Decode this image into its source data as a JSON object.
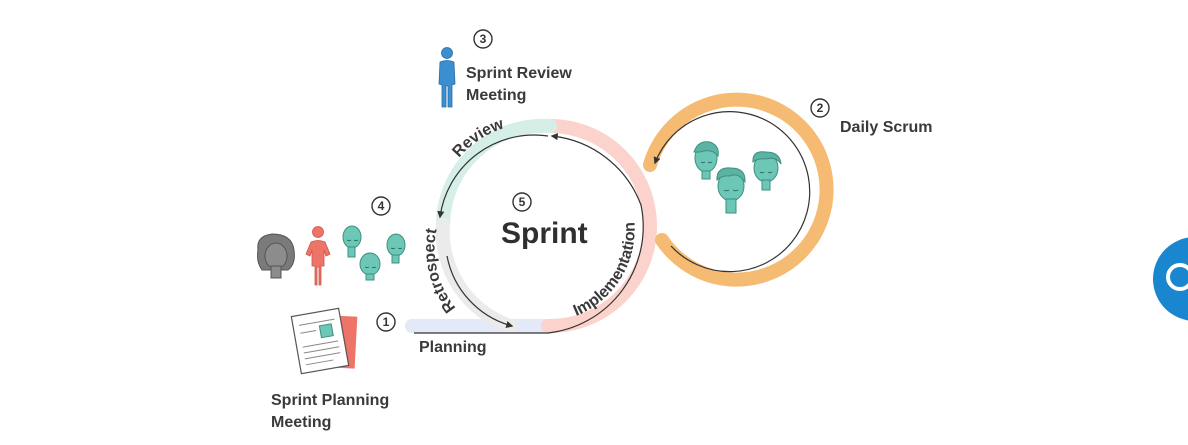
{
  "labels": {
    "sprint": "Sprint",
    "planning": "Planning",
    "implementation": "Implementation",
    "review": "Review",
    "retrospect": "Retrospect",
    "sprint_planning_meeting": [
      "Sprint Planning",
      "Meeting"
    ],
    "sprint_review_meeting": [
      "Sprint Review",
      "Meeting"
    ],
    "daily_scrum": "Daily Scrum"
  },
  "steps": {
    "planning": "1",
    "daily_scrum": "2",
    "review": "3",
    "retrospect": "4",
    "sprint": "5"
  },
  "icons": {
    "document": "sprint-planning-document-icon",
    "review_person": "blue-person-icon",
    "scrum_team": "team-heads-icon",
    "retro_team": "retrospective-team-icon",
    "help": "help-chat-icon"
  },
  "colors": {
    "planning_track": "#e3e9f6",
    "implementation_track": "#fbd3cc",
    "review_track": "#d6eee8",
    "retrospect_track": "#ebebeb",
    "daily_scrum_loop": "#f6bb72",
    "teal_heads": "#6cc7b6",
    "blue_person": "#3b8fd1",
    "red_person": "#ee7467",
    "gray_head": "#7a7a7a",
    "help_button": "#1a86cf"
  }
}
